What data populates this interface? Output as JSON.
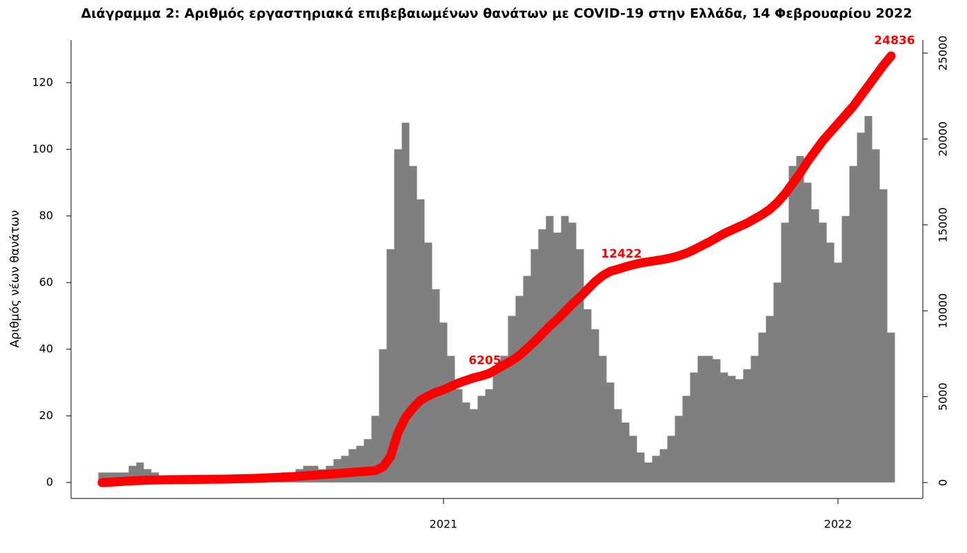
{
  "chart_data": {
    "type": "bar",
    "title": "Διάγραμμα 2: Αριθμός εργαστηριακά επιβεβαιωμένων θανάτων με COVID-19 στην Ελλάδα, 14 Φεβρουαρίου 2022",
    "y_label": "Αριθμός νέων θανάτων",
    "categories": [
      null,
      null,
      null,
      null,
      null,
      null,
      null,
      null,
      null,
      null,
      null,
      null,
      null,
      null,
      null,
      null,
      null,
      null,
      null,
      null,
      null,
      null,
      null,
      null,
      null,
      null,
      null,
      null,
      null,
      null,
      null,
      null,
      null,
      null,
      null,
      null,
      null,
      null,
      null,
      null,
      null,
      null,
      null,
      null,
      null,
      "2021",
      null,
      null,
      null,
      null,
      null,
      null,
      null,
      null,
      null,
      null,
      null,
      null,
      null,
      null,
      null,
      null,
      null,
      null,
      null,
      null,
      null,
      null,
      null,
      null,
      null,
      null,
      null,
      null,
      null,
      null,
      null,
      null,
      null,
      null,
      null,
      null,
      null,
      null,
      null,
      null,
      null,
      null,
      null,
      null,
      null,
      null,
      null,
      null,
      null,
      null,
      null,
      "2022",
      null,
      null,
      null,
      null,
      null,
      null,
      null
    ],
    "series": [
      {
        "type": "bar",
        "color": "#7f7f7f",
        "values": [
          3,
          3,
          3,
          3,
          5,
          6,
          4,
          3,
          2,
          1,
          1,
          1,
          0,
          0,
          0,
          0,
          0,
          1,
          0,
          0,
          1,
          1,
          1,
          2,
          3,
          3,
          4,
          5,
          5,
          4,
          5,
          7,
          8,
          10,
          11,
          13,
          20,
          40,
          70,
          100,
          108,
          95,
          85,
          72,
          58,
          48,
          38,
          28,
          24,
          22,
          26,
          28,
          35,
          38,
          50,
          56,
          62,
          70,
          76,
          80,
          75,
          80,
          78,
          70,
          52,
          46,
          38,
          30,
          22,
          18,
          14,
          9,
          6,
          8,
          10,
          14,
          20,
          26,
          33,
          38,
          38,
          37,
          33,
          32,
          31,
          34,
          38,
          45,
          50,
          60,
          78,
          95,
          98,
          90,
          82,
          78,
          72,
          66,
          80,
          95,
          105,
          110,
          100,
          88,
          45
        ]
      },
      {
        "type": "line",
        "axis": "y2",
        "color": "#ff0000",
        "values": [
          0,
          20,
          50,
          80,
          100,
          120,
          140,
          150,
          160,
          165,
          170,
          175,
          180,
          185,
          190,
          195,
          200,
          210,
          220,
          230,
          240,
          260,
          280,
          300,
          320,
          340,
          370,
          400,
          430,
          460,
          490,
          520,
          560,
          600,
          630,
          660,
          700,
          900,
          1500,
          2900,
          3800,
          4350,
          4800,
          5050,
          5250,
          5400,
          5600,
          5800,
          5950,
          6100,
          6205,
          6350,
          6600,
          6850,
          7100,
          7400,
          7800,
          8200,
          8650,
          9100,
          9500,
          9950,
          10400,
          10800,
          11250,
          11700,
          12050,
          12300,
          12422,
          12560,
          12680,
          12780,
          12850,
          12920,
          12990,
          13080,
          13200,
          13350,
          13550,
          13780,
          14000,
          14250,
          14500,
          14700,
          14900,
          15100,
          15350,
          15600,
          15900,
          16300,
          16800,
          17400,
          18000,
          18700,
          19300,
          19900,
          20400,
          20900,
          21400,
          21900,
          22500,
          23100,
          23700,
          24300,
          24836
        ]
      }
    ],
    "annotations": [
      6205,
      12422,
      24836
    ],
    "ylim": [
      -4.8,
      132.8
    ],
    "yticks": [
      0,
      20,
      40,
      60,
      80,
      100,
      120
    ],
    "y2lim": [
      -925,
      25760
    ],
    "y2ticks": [
      0,
      5000,
      10000,
      15000,
      20000,
      25000
    ]
  }
}
